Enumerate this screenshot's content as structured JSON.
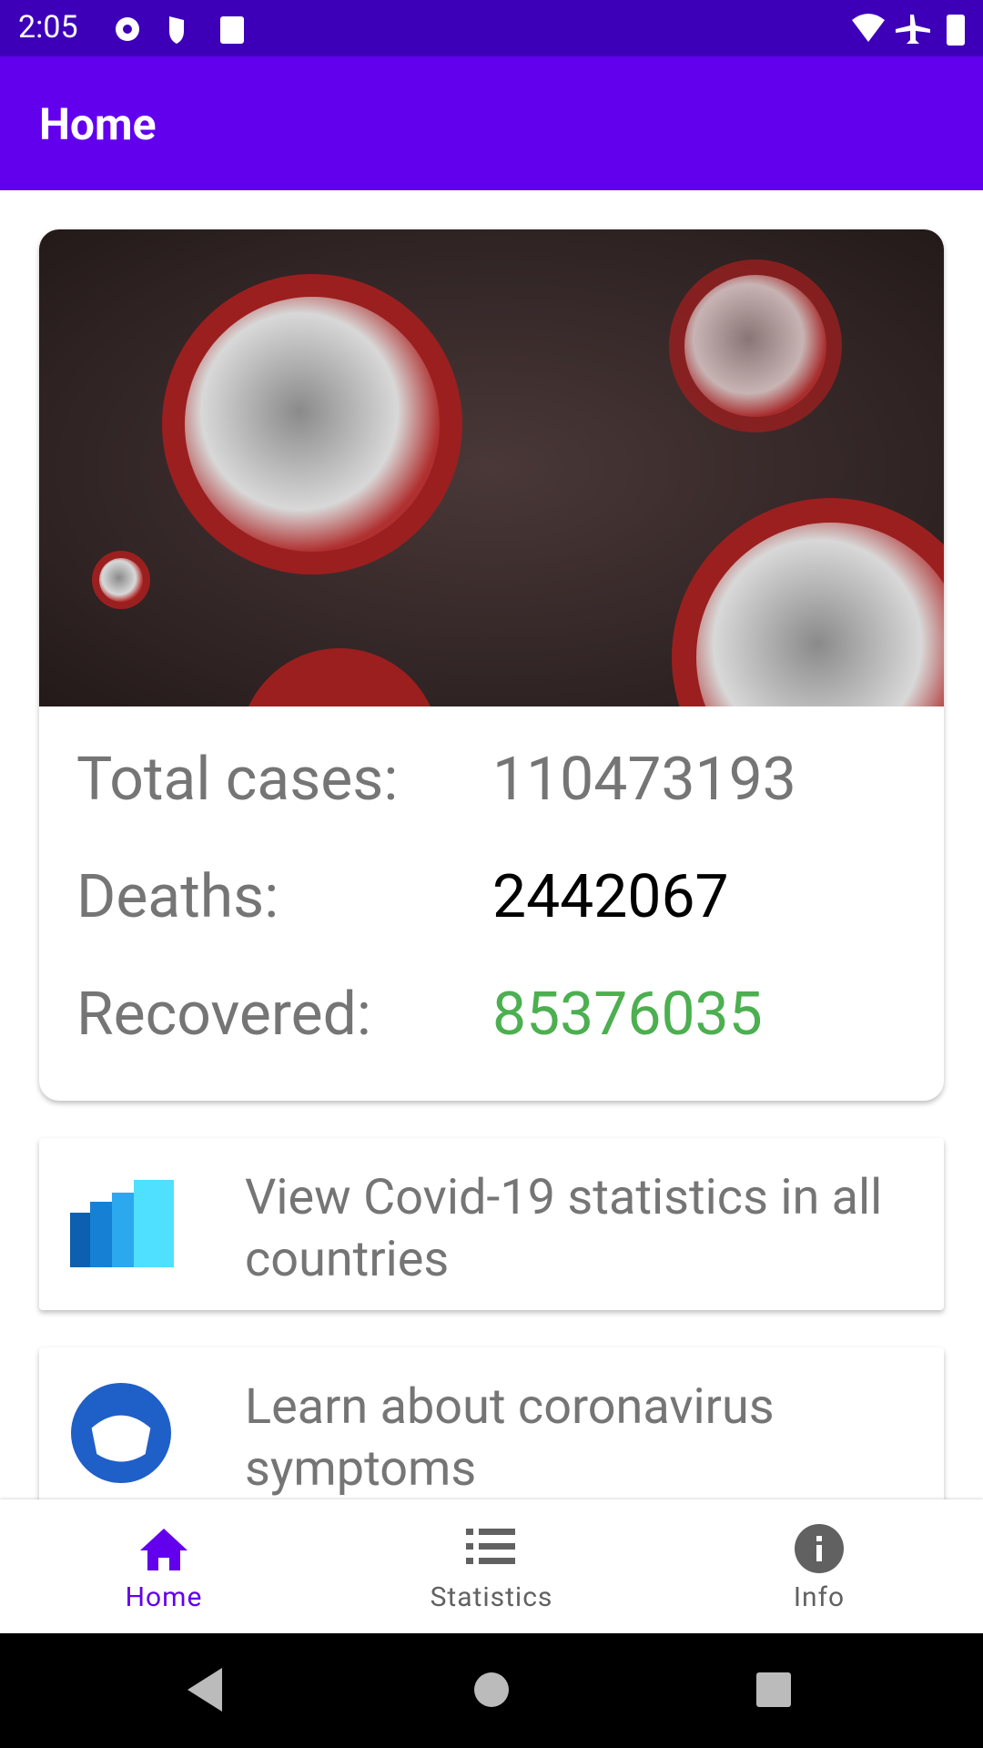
{
  "status_bar": {
    "time": "2:05"
  },
  "app_bar": {
    "title": "Home"
  },
  "summary": {
    "rows": [
      {
        "label": "Total cases:",
        "value": 110473193
      },
      {
        "label": "Deaths:",
        "value": 2442067
      },
      {
        "label": "Recovered:",
        "value": 85376035
      }
    ]
  },
  "cards": [
    {
      "text": "View Covid-19 statistics in all countries"
    },
    {
      "text": "Learn about coronavirus symptoms"
    }
  ],
  "nav": [
    {
      "label": "Home"
    },
    {
      "label": "Statistics"
    },
    {
      "label": "Info"
    }
  ]
}
